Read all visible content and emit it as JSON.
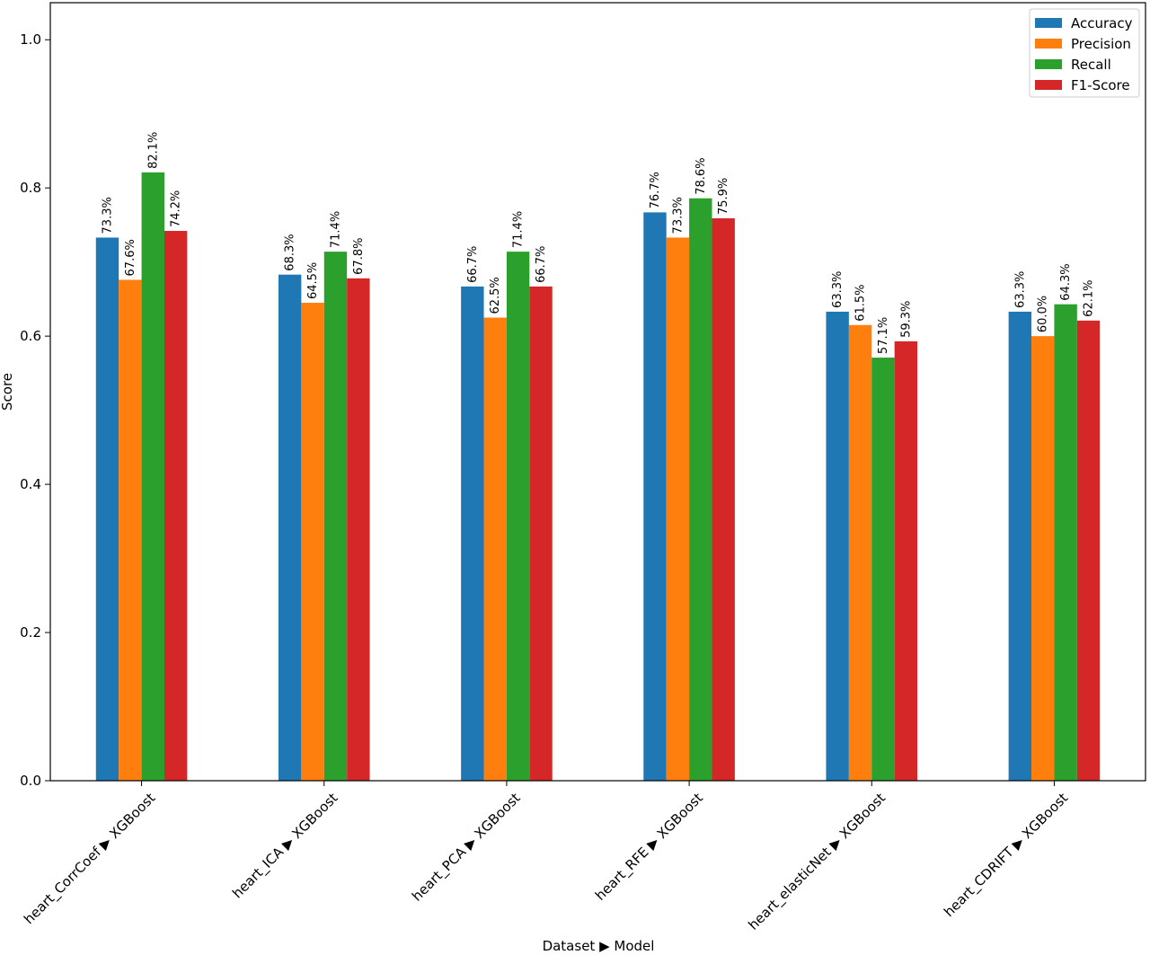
{
  "chart_data": {
    "type": "bar",
    "title": "",
    "xlabel": "Dataset ▶ Model",
    "ylabel": "Score",
    "ylim": [
      0,
      1.05
    ],
    "yticks": [
      0.0,
      0.2,
      0.4,
      0.6,
      0.8,
      1.0
    ],
    "ytick_labels": [
      "0.0",
      "0.2",
      "0.4",
      "0.6",
      "0.8",
      "1.0"
    ],
    "grid": false,
    "legend_position": "top-right",
    "categories": [
      "heart_CorrCoef ▶ XGBoost",
      "heart_ICA ▶ XGBoost",
      "heart_PCA ▶ XGBoost",
      "heart_RFE ▶ XGBoost",
      "heart_elasticNet ▶ XGBoost",
      "heart_CDRIFT ▶ XGBoost"
    ],
    "series": [
      {
        "name": "Accuracy",
        "color": "#1f77b4",
        "values": [
          0.733,
          0.683,
          0.667,
          0.767,
          0.633,
          0.633
        ],
        "labels": [
          "73.3%",
          "68.3%",
          "66.7%",
          "76.7%",
          "63.3%",
          "63.3%"
        ]
      },
      {
        "name": "Precision",
        "color": "#ff7f0e",
        "values": [
          0.676,
          0.645,
          0.625,
          0.733,
          0.615,
          0.6
        ],
        "labels": [
          "67.6%",
          "64.5%",
          "62.5%",
          "73.3%",
          "61.5%",
          "60.0%"
        ]
      },
      {
        "name": "Recall",
        "color": "#2ca02c",
        "values": [
          0.821,
          0.714,
          0.714,
          0.786,
          0.571,
          0.643
        ],
        "labels": [
          "82.1%",
          "71.4%",
          "71.4%",
          "78.6%",
          "57.1%",
          "64.3%"
        ]
      },
      {
        "name": "F1-Score",
        "color": "#d62728",
        "values": [
          0.742,
          0.678,
          0.667,
          0.759,
          0.593,
          0.621
        ],
        "labels": [
          "74.2%",
          "67.8%",
          "66.7%",
          "75.9%",
          "59.3%",
          "62.1%"
        ]
      }
    ]
  }
}
